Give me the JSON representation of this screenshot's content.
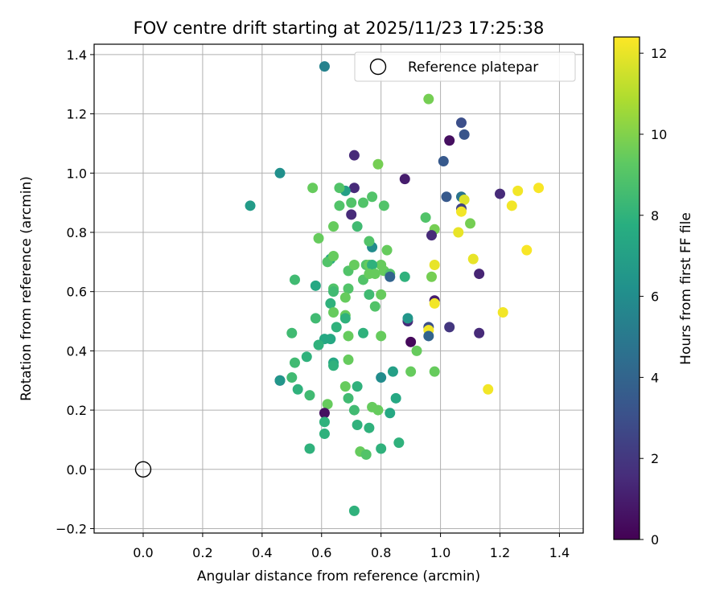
{
  "chart_data": {
    "type": "scatter",
    "title": "FOV centre drift starting at 2025/11/23 17:25:38",
    "xlabel": "Angular distance from reference (arcmin)",
    "ylabel": "Rotation from reference (arcmin)",
    "xlim": [
      -0.165,
      1.48
    ],
    "ylim": [
      -0.215,
      1.435
    ],
    "xticks": [
      0.0,
      0.2,
      0.4,
      0.6,
      0.8,
      1.0,
      1.2,
      1.4
    ],
    "xtick_labels": [
      "0.0",
      "0.2",
      "0.4",
      "0.6",
      "0.8",
      "1.0",
      "1.2",
      "1.4"
    ],
    "yticks": [
      -0.2,
      0.0,
      0.2,
      0.4,
      0.6,
      0.8,
      1.0,
      1.2,
      1.4
    ],
    "ytick_labels": [
      "−0.2",
      "0.0",
      "0.2",
      "0.4",
      "0.6",
      "0.8",
      "1.0",
      "1.2",
      "1.4"
    ],
    "grid": true,
    "legend": {
      "position": "top-right",
      "entries": [
        {
          "label": "Reference platepar",
          "marker": "open-circle"
        }
      ]
    },
    "reference_point": {
      "x": 0.0,
      "y": 0.0
    },
    "colorbar": {
      "label": "Hours from first FF file",
      "colormap": "viridis",
      "range": [
        0,
        12.4
      ],
      "ticks": [
        0,
        2,
        4,
        6,
        8,
        10,
        12
      ],
      "tick_labels": [
        "0",
        "2",
        "4",
        "6",
        "8",
        "10",
        "12"
      ]
    },
    "series": [
      {
        "points": [
          {
            "x": 0.61,
            "y": 1.36,
            "c": 5.5
          },
          {
            "x": 0.96,
            "y": 1.25,
            "c": 9.8
          },
          {
            "x": 0.46,
            "y": 1.0,
            "c": 6.2
          },
          {
            "x": 0.36,
            "y": 0.89,
            "c": 6.8
          },
          {
            "x": 0.57,
            "y": 0.95,
            "c": 9.5
          },
          {
            "x": 1.07,
            "y": 1.17,
            "c": 3.0
          },
          {
            "x": 1.08,
            "y": 1.13,
            "c": 3.3
          },
          {
            "x": 1.03,
            "y": 1.11,
            "c": 0.5
          },
          {
            "x": 1.01,
            "y": 1.04,
            "c": 3.5
          },
          {
            "x": 0.71,
            "y": 1.06,
            "c": 1.5
          },
          {
            "x": 0.79,
            "y": 1.03,
            "c": 9.8
          },
          {
            "x": 0.88,
            "y": 0.98,
            "c": 1.0
          },
          {
            "x": 1.02,
            "y": 0.92,
            "c": 3.5
          },
          {
            "x": 1.07,
            "y": 0.92,
            "c": 4.8
          },
          {
            "x": 1.08,
            "y": 0.91,
            "c": 11.8
          },
          {
            "x": 1.07,
            "y": 0.88,
            "c": 2.5
          },
          {
            "x": 1.07,
            "y": 0.87,
            "c": 12.2
          },
          {
            "x": 1.2,
            "y": 0.93,
            "c": 1.5
          },
          {
            "x": 1.24,
            "y": 0.89,
            "c": 12.2
          },
          {
            "x": 1.26,
            "y": 0.94,
            "c": 12.2
          },
          {
            "x": 1.33,
            "y": 0.95,
            "c": 12.3
          },
          {
            "x": 1.29,
            "y": 0.74,
            "c": 12.3
          },
          {
            "x": 1.11,
            "y": 0.71,
            "c": 12.0
          },
          {
            "x": 1.13,
            "y": 0.66,
            "c": 1.3
          },
          {
            "x": 1.1,
            "y": 0.83,
            "c": 9.8
          },
          {
            "x": 0.98,
            "y": 0.81,
            "c": 9.8
          },
          {
            "x": 0.97,
            "y": 0.79,
            "c": 1.5
          },
          {
            "x": 0.95,
            "y": 0.85,
            "c": 9.0
          },
          {
            "x": 1.06,
            "y": 0.8,
            "c": 12.0
          },
          {
            "x": 0.98,
            "y": 0.69,
            "c": 12.0
          },
          {
            "x": 0.97,
            "y": 0.65,
            "c": 9.8
          },
          {
            "x": 0.98,
            "y": 0.57,
            "c": 1.0
          },
          {
            "x": 0.98,
            "y": 0.56,
            "c": 12.2
          },
          {
            "x": 0.96,
            "y": 0.48,
            "c": 3.0
          },
          {
            "x": 0.96,
            "y": 0.47,
            "c": 12.2
          },
          {
            "x": 1.03,
            "y": 0.48,
            "c": 2.0
          },
          {
            "x": 0.96,
            "y": 0.45,
            "c": 4.0
          },
          {
            "x": 1.13,
            "y": 0.46,
            "c": 1.5
          },
          {
            "x": 1.21,
            "y": 0.53,
            "c": 12.2
          },
          {
            "x": 1.16,
            "y": 0.27,
            "c": 12.2
          },
          {
            "x": 0.89,
            "y": 0.5,
            "c": 1.5
          },
          {
            "x": 0.89,
            "y": 0.51,
            "c": 6.5
          },
          {
            "x": 0.9,
            "y": 0.43,
            "c": 0.3
          },
          {
            "x": 0.92,
            "y": 0.4,
            "c": 9.5
          },
          {
            "x": 0.98,
            "y": 0.33,
            "c": 9.5
          },
          {
            "x": 0.9,
            "y": 0.33,
            "c": 9.5
          },
          {
            "x": 0.84,
            "y": 0.33,
            "c": 7.0
          },
          {
            "x": 0.85,
            "y": 0.24,
            "c": 7.5
          },
          {
            "x": 0.83,
            "y": 0.19,
            "c": 7.5
          },
          {
            "x": 0.86,
            "y": 0.09,
            "c": 8.0
          },
          {
            "x": 0.8,
            "y": 0.07,
            "c": 8.0
          },
          {
            "x": 0.8,
            "y": 0.31,
            "c": 6.0
          },
          {
            "x": 0.8,
            "y": 0.45,
            "c": 9.5
          },
          {
            "x": 0.78,
            "y": 0.55,
            "c": 9.0
          },
          {
            "x": 0.8,
            "y": 0.59,
            "c": 9.5
          },
          {
            "x": 0.8,
            "y": 0.69,
            "c": 9.5
          },
          {
            "x": 0.81,
            "y": 0.67,
            "c": 9.5
          },
          {
            "x": 0.83,
            "y": 0.66,
            "c": 9.0
          },
          {
            "x": 0.83,
            "y": 0.65,
            "c": 4.0
          },
          {
            "x": 0.88,
            "y": 0.65,
            "c": 8.0
          },
          {
            "x": 0.82,
            "y": 0.74,
            "c": 9.5
          },
          {
            "x": 0.77,
            "y": 0.75,
            "c": 6.0
          },
          {
            "x": 0.76,
            "y": 0.77,
            "c": 9.0
          },
          {
            "x": 0.77,
            "y": 0.92,
            "c": 9.0
          },
          {
            "x": 0.81,
            "y": 0.89,
            "c": 9.0
          },
          {
            "x": 0.74,
            "y": 0.9,
            "c": 9.0
          },
          {
            "x": 0.71,
            "y": 0.95,
            "c": 1.5
          },
          {
            "x": 0.7,
            "y": 0.9,
            "c": 9.0
          },
          {
            "x": 0.7,
            "y": 0.86,
            "c": 1.5
          },
          {
            "x": 0.72,
            "y": 0.82,
            "c": 8.5
          },
          {
            "x": 0.68,
            "y": 0.94,
            "c": 7.0
          },
          {
            "x": 0.66,
            "y": 0.95,
            "c": 9.0
          },
          {
            "x": 0.66,
            "y": 0.89,
            "c": 9.0
          },
          {
            "x": 0.64,
            "y": 0.82,
            "c": 9.5
          },
          {
            "x": 0.63,
            "y": 0.71,
            "c": 7.5
          },
          {
            "x": 0.62,
            "y": 0.7,
            "c": 9.0
          },
          {
            "x": 0.64,
            "y": 0.72,
            "c": 9.5
          },
          {
            "x": 0.59,
            "y": 0.78,
            "c": 9.5
          },
          {
            "x": 0.69,
            "y": 0.67,
            "c": 9.0
          },
          {
            "x": 0.71,
            "y": 0.69,
            "c": 9.5
          },
          {
            "x": 0.75,
            "y": 0.69,
            "c": 9.0
          },
          {
            "x": 0.76,
            "y": 0.69,
            "c": 9.5
          },
          {
            "x": 0.77,
            "y": 0.69,
            "c": 8.0
          },
          {
            "x": 0.74,
            "y": 0.64,
            "c": 9.0
          },
          {
            "x": 0.76,
            "y": 0.66,
            "c": 9.5
          },
          {
            "x": 0.78,
            "y": 0.66,
            "c": 9.5
          },
          {
            "x": 0.76,
            "y": 0.59,
            "c": 8.5
          },
          {
            "x": 0.69,
            "y": 0.61,
            "c": 9.0
          },
          {
            "x": 0.68,
            "y": 0.58,
            "c": 9.5
          },
          {
            "x": 0.64,
            "y": 0.61,
            "c": 9.0
          },
          {
            "x": 0.64,
            "y": 0.6,
            "c": 8.5
          },
          {
            "x": 0.63,
            "y": 0.56,
            "c": 8.0
          },
          {
            "x": 0.58,
            "y": 0.62,
            "c": 7.5
          },
          {
            "x": 0.51,
            "y": 0.64,
            "c": 8.5
          },
          {
            "x": 0.64,
            "y": 0.53,
            "c": 9.5
          },
          {
            "x": 0.68,
            "y": 0.52,
            "c": 9.5
          },
          {
            "x": 0.68,
            "y": 0.51,
            "c": 8.0
          },
          {
            "x": 0.65,
            "y": 0.48,
            "c": 8.0
          },
          {
            "x": 0.58,
            "y": 0.51,
            "c": 8.5
          },
          {
            "x": 0.5,
            "y": 0.46,
            "c": 8.5
          },
          {
            "x": 0.61,
            "y": 0.44,
            "c": 7.5
          },
          {
            "x": 0.63,
            "y": 0.44,
            "c": 7.5
          },
          {
            "x": 0.59,
            "y": 0.42,
            "c": 8.0
          },
          {
            "x": 0.69,
            "y": 0.45,
            "c": 9.5
          },
          {
            "x": 0.74,
            "y": 0.46,
            "c": 8.0
          },
          {
            "x": 0.69,
            "y": 0.37,
            "c": 9.5
          },
          {
            "x": 0.64,
            "y": 0.36,
            "c": 7.5
          },
          {
            "x": 0.64,
            "y": 0.35,
            "c": 8.0
          },
          {
            "x": 0.55,
            "y": 0.38,
            "c": 8.0
          },
          {
            "x": 0.51,
            "y": 0.36,
            "c": 8.5
          },
          {
            "x": 0.5,
            "y": 0.31,
            "c": 8.5
          },
          {
            "x": 0.46,
            "y": 0.3,
            "c": 1.5
          },
          {
            "x": 0.46,
            "y": 0.3,
            "c": 6.5
          },
          {
            "x": 0.52,
            "y": 0.27,
            "c": 8.0
          },
          {
            "x": 0.56,
            "y": 0.25,
            "c": 8.5
          },
          {
            "x": 0.68,
            "y": 0.28,
            "c": 9.5
          },
          {
            "x": 0.72,
            "y": 0.28,
            "c": 8.0
          },
          {
            "x": 0.69,
            "y": 0.24,
            "c": 8.5
          },
          {
            "x": 0.62,
            "y": 0.22,
            "c": 9.5
          },
          {
            "x": 0.61,
            "y": 0.19,
            "c": 0.5
          },
          {
            "x": 0.71,
            "y": 0.2,
            "c": 8.5
          },
          {
            "x": 0.77,
            "y": 0.21,
            "c": 9.5
          },
          {
            "x": 0.79,
            "y": 0.2,
            "c": 9.5
          },
          {
            "x": 0.61,
            "y": 0.16,
            "c": 8.0
          },
          {
            "x": 0.61,
            "y": 0.12,
            "c": 8.0
          },
          {
            "x": 0.72,
            "y": 0.15,
            "c": 8.0
          },
          {
            "x": 0.76,
            "y": 0.14,
            "c": 8.0
          },
          {
            "x": 0.56,
            "y": 0.07,
            "c": 8.0
          },
          {
            "x": 0.73,
            "y": 0.06,
            "c": 9.5
          },
          {
            "x": 0.75,
            "y": 0.05,
            "c": 9.0
          },
          {
            "x": 0.71,
            "y": -0.14,
            "c": 8.0
          }
        ]
      }
    ]
  }
}
